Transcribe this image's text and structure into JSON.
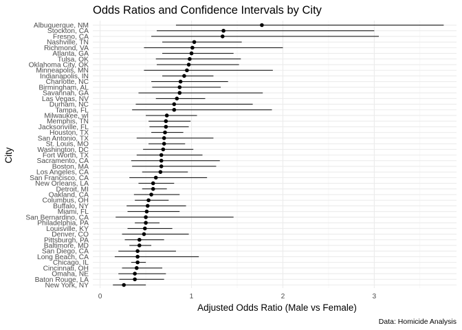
{
  "chart_data": {
    "type": "scatter",
    "title": "Odds Ratios and Confidence Intervals by City",
    "xlabel": "Adjusted Odds Ratio (Male vs Female)",
    "ylabel": "City",
    "caption": "Data: Homicide Analysis",
    "xlim": [
      -0.08,
      3.9
    ],
    "x_ticks": [
      0,
      1,
      2,
      3
    ],
    "grid": true,
    "series": [
      {
        "points": [
          {
            "city": "Albuquerque, NM",
            "or": 1.77,
            "lo": 0.83,
            "hi": 3.76
          },
          {
            "city": "Stockton, CA",
            "or": 1.35,
            "lo": 0.62,
            "hi": 3.0
          },
          {
            "city": "Fresno, CA",
            "or": 1.34,
            "lo": 0.56,
            "hi": 3.05
          },
          {
            "city": "Nashville, TN",
            "or": 1.03,
            "lo": 0.68,
            "hi": 1.55
          },
          {
            "city": "Richmond, VA",
            "or": 1.01,
            "lo": 0.48,
            "hi": 2.0
          },
          {
            "city": "Atlanta, GA",
            "or": 1.0,
            "lo": 0.68,
            "hi": 1.46
          },
          {
            "city": "Tulsa, OK",
            "or": 0.98,
            "lo": 0.61,
            "hi": 1.54
          },
          {
            "city": "Oklahoma City, OK",
            "or": 0.97,
            "lo": 0.62,
            "hi": 1.52
          },
          {
            "city": "Minneapolis, MN",
            "or": 0.95,
            "lo": 0.48,
            "hi": 1.89
          },
          {
            "city": "Indianapolis, IN",
            "or": 0.92,
            "lo": 0.68,
            "hi": 1.24
          },
          {
            "city": "Charlotte, NC",
            "or": 0.88,
            "lo": 0.56,
            "hi": 1.4
          },
          {
            "city": "Birmingham, AL",
            "or": 0.87,
            "lo": 0.57,
            "hi": 1.32
          },
          {
            "city": "Savannah, GA",
            "or": 0.87,
            "lo": 0.42,
            "hi": 1.78
          },
          {
            "city": "Las Vegas, NV",
            "or": 0.84,
            "lo": 0.61,
            "hi": 1.15
          },
          {
            "city": "Durham, NC",
            "or": 0.81,
            "lo": 0.39,
            "hi": 1.67
          },
          {
            "city": "Tampa, FL",
            "or": 0.81,
            "lo": 0.35,
            "hi": 1.88
          },
          {
            "city": "Milwaukee, wI",
            "or": 0.73,
            "lo": 0.5,
            "hi": 1.06
          },
          {
            "city": "Memphis, TN",
            "or": 0.72,
            "lo": 0.53,
            "hi": 0.99
          },
          {
            "city": "Jacksonville, FL",
            "or": 0.72,
            "lo": 0.54,
            "hi": 0.97
          },
          {
            "city": "Houston, TX",
            "or": 0.71,
            "lo": 0.56,
            "hi": 0.91
          },
          {
            "city": "San Antonio, TX",
            "or": 0.7,
            "lo": 0.4,
            "hi": 1.24
          },
          {
            "city": "St. Louis, MO",
            "or": 0.7,
            "lo": 0.53,
            "hi": 0.93
          },
          {
            "city": "Washington, DC",
            "or": 0.69,
            "lo": 0.47,
            "hi": 1.02
          },
          {
            "city": "Fort Worth, TX",
            "or": 0.67,
            "lo": 0.4,
            "hi": 1.12
          },
          {
            "city": "Sacramento, CA",
            "or": 0.67,
            "lo": 0.34,
            "hi": 1.31
          },
          {
            "city": "Boston, MA",
            "or": 0.67,
            "lo": 0.35,
            "hi": 1.27
          },
          {
            "city": "Los Angeles, CA",
            "or": 0.66,
            "lo": 0.46,
            "hi": 0.96
          },
          {
            "city": "San Francisco, CA",
            "or": 0.61,
            "lo": 0.32,
            "hi": 1.17
          },
          {
            "city": "New Orleans, LA",
            "or": 0.58,
            "lo": 0.42,
            "hi": 0.81
          },
          {
            "city": "Detroit, MI",
            "or": 0.58,
            "lo": 0.46,
            "hi": 0.73
          },
          {
            "city": "Oakland, CA",
            "or": 0.56,
            "lo": 0.37,
            "hi": 0.87
          },
          {
            "city": "Columbus, OH",
            "or": 0.53,
            "lo": 0.38,
            "hi": 0.75
          },
          {
            "city": "Buffalo, NY",
            "or": 0.52,
            "lo": 0.29,
            "hi": 0.94
          },
          {
            "city": "Miami, FL",
            "or": 0.51,
            "lo": 0.3,
            "hi": 0.87
          },
          {
            "city": "San Bernardino, CA",
            "or": 0.5,
            "lo": 0.17,
            "hi": 1.46
          },
          {
            "city": "Philadelphia, PA",
            "or": 0.5,
            "lo": 0.38,
            "hi": 0.65
          },
          {
            "city": "Louisville, KY",
            "or": 0.49,
            "lo": 0.3,
            "hi": 0.79
          },
          {
            "city": "Denver, CO",
            "or": 0.48,
            "lo": 0.24,
            "hi": 0.97
          },
          {
            "city": "Pittsburgh, PA",
            "or": 0.43,
            "lo": 0.27,
            "hi": 0.7
          },
          {
            "city": "Baltimore, MD",
            "or": 0.43,
            "lo": 0.32,
            "hi": 0.56
          },
          {
            "city": "San Diego, CA",
            "or": 0.41,
            "lo": 0.2,
            "hi": 0.83
          },
          {
            "city": "Long Beach, CA",
            "or": 0.41,
            "lo": 0.16,
            "hi": 1.08
          },
          {
            "city": "Chicago, IL",
            "or": 0.41,
            "lo": 0.34,
            "hi": 0.5
          },
          {
            "city": "Cincinnati, OH",
            "or": 0.4,
            "lo": 0.24,
            "hi": 0.68
          },
          {
            "city": "Omaha, NE",
            "or": 0.38,
            "lo": 0.2,
            "hi": 0.72
          },
          {
            "city": "Baton Rouge, LA",
            "or": 0.38,
            "lo": 0.21,
            "hi": 0.7
          },
          {
            "city": "New York, NY",
            "or": 0.26,
            "lo": 0.14,
            "hi": 0.5
          }
        ]
      }
    ]
  }
}
